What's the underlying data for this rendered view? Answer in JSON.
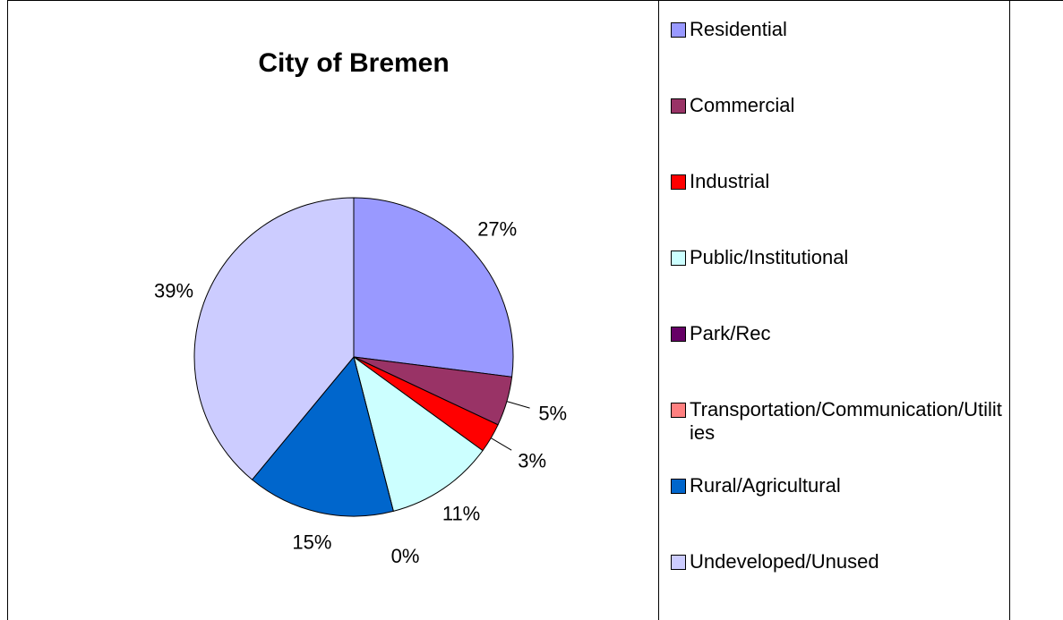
{
  "chart_data": {
    "type": "pie",
    "title": "City of Bremen",
    "categories": [
      "Residential",
      "Commercial",
      "Industrial",
      "Public/Institutional",
      "Park/Rec",
      "Transportation/Communication/Utilities",
      "Rural/Agricultural",
      "Undeveloped/Unused"
    ],
    "values": [
      27,
      5,
      3,
      11,
      0,
      0,
      15,
      39
    ],
    "value_labels": [
      "27%",
      "5%",
      "3%",
      "11%",
      "0%",
      null,
      "15%",
      "39%"
    ],
    "colors": [
      "#9999ff",
      "#993366",
      "#ff0000",
      "#ccffff",
      "#660066",
      "#ff8080",
      "#0066cc",
      "#ccccff"
    ],
    "legend": "right"
  }
}
